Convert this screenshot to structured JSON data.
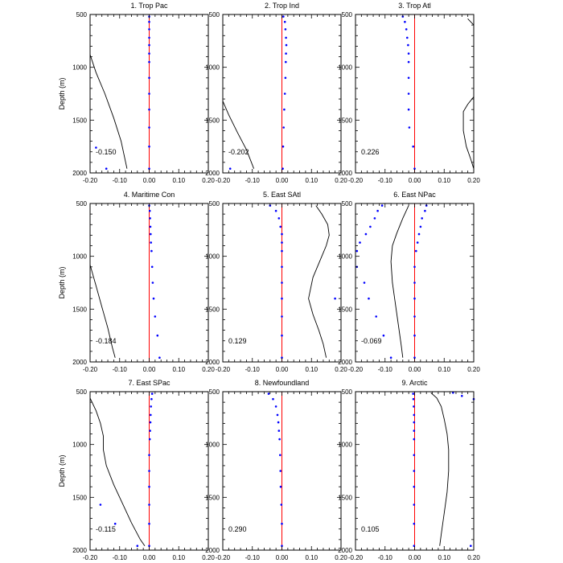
{
  "chart_data": {
    "type": "multi-panel line + scatter profiles",
    "x_tick_labels": [
      "-0.20",
      "-0.10",
      "0.00",
      "0.10",
      "0.20"
    ],
    "y_tick_labels": [
      "500",
      "1000",
      "1500",
      "2000"
    ],
    "xlim": [
      -0.2,
      0.2
    ],
    "ylim": [
      2000,
      500
    ],
    "ylabel": "Depth (m)",
    "colors": {
      "zero_line": "#ff0000",
      "points": "#0000ff",
      "curve": "#000000"
    },
    "panels": [
      {
        "title": "1. Trop Pac",
        "value_label": "-0.150",
        "points": [
          [
            0.0,
            520
          ],
          [
            0.0,
            570
          ],
          [
            0.0,
            640
          ],
          [
            0.0,
            720
          ],
          [
            0.0,
            790
          ],
          [
            0.0,
            870
          ],
          [
            0.0,
            950
          ],
          [
            0.0,
            1100
          ],
          [
            0.0,
            1250
          ],
          [
            0.0,
            1400
          ],
          [
            0.0,
            1570
          ],
          [
            0.0,
            1750
          ],
          [
            0.0,
            1960
          ],
          [
            -0.18,
            1760
          ],
          [
            -0.145,
            1960
          ]
        ],
        "curve": [
          [
            -0.2,
            880
          ],
          [
            -0.18,
            1050
          ],
          [
            -0.15,
            1250
          ],
          [
            -0.12,
            1480
          ],
          [
            -0.095,
            1700
          ],
          [
            -0.075,
            1960
          ]
        ]
      },
      {
        "title": "2. Trop Ind",
        "value_label": "-0.202",
        "points": [
          [
            0.005,
            520
          ],
          [
            0.01,
            570
          ],
          [
            0.012,
            640
          ],
          [
            0.014,
            720
          ],
          [
            0.015,
            790
          ],
          [
            0.014,
            870
          ],
          [
            0.013,
            950
          ],
          [
            0.012,
            1100
          ],
          [
            0.01,
            1250
          ],
          [
            0.008,
            1400
          ],
          [
            0.006,
            1570
          ],
          [
            0.004,
            1750
          ],
          [
            0.003,
            1960
          ],
          [
            -0.175,
            1960
          ]
        ],
        "curve": [
          [
            -0.2,
            1320
          ],
          [
            -0.18,
            1450
          ],
          [
            -0.15,
            1620
          ],
          [
            -0.12,
            1780
          ],
          [
            -0.095,
            1960
          ]
        ]
      },
      {
        "title": "3. Trop Atl",
        "value_label": "0.226",
        "points": [
          [
            -0.04,
            520
          ],
          [
            -0.033,
            570
          ],
          [
            -0.028,
            640
          ],
          [
            -0.025,
            720
          ],
          [
            -0.022,
            790
          ],
          [
            -0.02,
            870
          ],
          [
            -0.02,
            950
          ],
          [
            -0.02,
            1100
          ],
          [
            -0.02,
            1250
          ],
          [
            -0.02,
            1400
          ],
          [
            -0.018,
            1570
          ],
          [
            -0.005,
            1750
          ],
          [
            0.0,
            1960
          ]
        ],
        "curve": [
          [
            0.18,
            540
          ],
          [
            0.2,
            600
          ],
          [
            0.2,
            1280
          ],
          [
            0.18,
            1350
          ],
          [
            0.165,
            1420
          ],
          [
            0.165,
            1600
          ],
          [
            0.175,
            1750
          ],
          [
            0.19,
            1870
          ],
          [
            0.2,
            1960
          ]
        ]
      },
      {
        "title": "4. Maritime Con",
        "value_label": "-0.184",
        "points": [
          [
            0.0,
            520
          ],
          [
            0.002,
            570
          ],
          [
            0.003,
            640
          ],
          [
            0.004,
            720
          ],
          [
            0.005,
            790
          ],
          [
            0.006,
            870
          ],
          [
            0.008,
            950
          ],
          [
            0.01,
            1100
          ],
          [
            0.012,
            1250
          ],
          [
            0.015,
            1400
          ],
          [
            0.02,
            1570
          ],
          [
            0.028,
            1750
          ],
          [
            0.035,
            1960
          ]
        ],
        "curve": [
          [
            -0.2,
            1080
          ],
          [
            -0.18,
            1280
          ],
          [
            -0.16,
            1480
          ],
          [
            -0.14,
            1680
          ],
          [
            -0.125,
            1860
          ],
          [
            -0.115,
            1960
          ]
        ]
      },
      {
        "title": "5. East SAtl",
        "value_label": "0.129",
        "points": [
          [
            -0.04,
            520
          ],
          [
            -0.02,
            570
          ],
          [
            -0.01,
            640
          ],
          [
            -0.005,
            720
          ],
          [
            0.0,
            790
          ],
          [
            0.0,
            870
          ],
          [
            0.0,
            950
          ],
          [
            0.0,
            1100
          ],
          [
            0.0,
            1250
          ],
          [
            0.0,
            1400
          ],
          [
            0.0,
            1570
          ],
          [
            0.0,
            1750
          ],
          [
            0.0,
            1960
          ],
          [
            0.18,
            1400
          ]
        ],
        "curve": [
          [
            0.115,
            520
          ],
          [
            0.135,
            600
          ],
          [
            0.155,
            700
          ],
          [
            0.16,
            800
          ],
          [
            0.15,
            900
          ],
          [
            0.135,
            1000
          ],
          [
            0.12,
            1100
          ],
          [
            0.105,
            1200
          ],
          [
            0.09,
            1400
          ],
          [
            0.105,
            1550
          ],
          [
            0.125,
            1700
          ],
          [
            0.14,
            1830
          ],
          [
            0.15,
            1960
          ]
        ]
      },
      {
        "title": "6. East NPac",
        "value_label": "-0.069",
        "points": [
          [
            0.04,
            520
          ],
          [
            0.035,
            570
          ],
          [
            0.025,
            640
          ],
          [
            0.02,
            720
          ],
          [
            0.015,
            790
          ],
          [
            0.01,
            870
          ],
          [
            0.005,
            950
          ],
          [
            0.0,
            1100
          ],
          [
            0.0,
            1250
          ],
          [
            0.0,
            1400
          ],
          [
            0.0,
            1570
          ],
          [
            0.0,
            1750
          ],
          [
            0.0,
            1960
          ],
          [
            -0.11,
            520
          ],
          [
            -0.125,
            570
          ],
          [
            -0.135,
            640
          ],
          [
            -0.15,
            720
          ],
          [
            -0.165,
            790
          ],
          [
            -0.185,
            870
          ],
          [
            -0.195,
            950
          ],
          [
            -0.195,
            1100
          ],
          [
            -0.17,
            1250
          ],
          [
            -0.155,
            1400
          ],
          [
            -0.13,
            1570
          ],
          [
            -0.105,
            1750
          ],
          [
            -0.08,
            1960
          ]
        ],
        "curve": [
          [
            -0.02,
            520
          ],
          [
            -0.04,
            640
          ],
          [
            -0.06,
            780
          ],
          [
            -0.075,
            900
          ],
          [
            -0.08,
            1050
          ],
          [
            -0.075,
            1250
          ],
          [
            -0.065,
            1450
          ],
          [
            -0.055,
            1650
          ],
          [
            -0.045,
            1850
          ],
          [
            -0.04,
            1960
          ]
        ]
      },
      {
        "title": "7. East SPac",
        "value_label": "-0.115",
        "points": [
          [
            0.01,
            520
          ],
          [
            0.008,
            570
          ],
          [
            0.006,
            640
          ],
          [
            0.005,
            720
          ],
          [
            0.004,
            790
          ],
          [
            0.003,
            870
          ],
          [
            0.002,
            950
          ],
          [
            0.0,
            1100
          ],
          [
            0.0,
            1250
          ],
          [
            0.0,
            1400
          ],
          [
            0.0,
            1570
          ],
          [
            0.0,
            1750
          ],
          [
            0.0,
            1960
          ],
          [
            -0.165,
            1570
          ],
          [
            -0.115,
            1750
          ],
          [
            -0.04,
            1960
          ]
        ],
        "curve": [
          [
            -0.2,
            560
          ],
          [
            -0.18,
            680
          ],
          [
            -0.165,
            800
          ],
          [
            -0.155,
            920
          ],
          [
            -0.155,
            1050
          ],
          [
            -0.145,
            1200
          ],
          [
            -0.12,
            1380
          ],
          [
            -0.09,
            1560
          ],
          [
            -0.06,
            1740
          ],
          [
            -0.03,
            1900
          ],
          [
            -0.015,
            1960
          ]
        ]
      },
      {
        "title": "8. Newfoundland",
        "value_label": "0.290",
        "points": [
          [
            -0.045,
            520
          ],
          [
            -0.03,
            570
          ],
          [
            -0.02,
            640
          ],
          [
            -0.015,
            720
          ],
          [
            -0.012,
            790
          ],
          [
            -0.01,
            870
          ],
          [
            -0.008,
            950
          ],
          [
            -0.006,
            1100
          ],
          [
            -0.005,
            1250
          ],
          [
            -0.004,
            1400
          ],
          [
            -0.002,
            1570
          ],
          [
            0.0,
            1750
          ],
          [
            0.0,
            1960
          ]
        ],
        "curve": []
      },
      {
        "title": "9. Arctic",
        "value_label": "0.105",
        "points": [
          [
            -0.005,
            520
          ],
          [
            -0.004,
            570
          ],
          [
            -0.003,
            640
          ],
          [
            -0.002,
            720
          ],
          [
            -0.002,
            790
          ],
          [
            -0.002,
            870
          ],
          [
            -0.002,
            950
          ],
          [
            -0.002,
            1100
          ],
          [
            -0.002,
            1250
          ],
          [
            -0.002,
            1400
          ],
          [
            -0.002,
            1570
          ],
          [
            -0.002,
            1750
          ],
          [
            -0.002,
            1960
          ],
          [
            0.13,
            510
          ],
          [
            0.16,
            540
          ],
          [
            0.2,
            570
          ],
          [
            0.19,
            1960
          ]
        ],
        "curve": [
          [
            0.055,
            510
          ],
          [
            0.075,
            560
          ],
          [
            0.09,
            640
          ],
          [
            0.1,
            760
          ],
          [
            0.11,
            900
          ],
          [
            0.115,
            1050
          ],
          [
            0.115,
            1250
          ],
          [
            0.11,
            1450
          ],
          [
            0.1,
            1650
          ],
          [
            0.09,
            1850
          ],
          [
            0.085,
            1960
          ]
        ]
      }
    ]
  }
}
